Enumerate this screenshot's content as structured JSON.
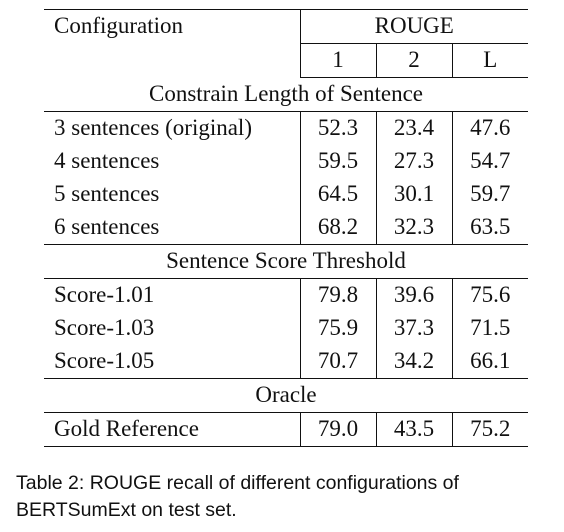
{
  "table": {
    "header": {
      "config_label": "Configuration",
      "group_label": "ROUGE",
      "sub_columns": [
        "1",
        "2",
        "L"
      ]
    },
    "sections": [
      {
        "title": "Constrain Length of Sentence",
        "rows": [
          {
            "label": "3 sentences (original)",
            "values": [
              "52.3",
              "23.4",
              "47.6"
            ]
          },
          {
            "label": "4 sentences",
            "values": [
              "59.5",
              "27.3",
              "54.7"
            ]
          },
          {
            "label": "5 sentences",
            "values": [
              "64.5",
              "30.1",
              "59.7"
            ]
          },
          {
            "label": "6 sentences",
            "values": [
              "68.2",
              "32.3",
              "63.5"
            ]
          }
        ]
      },
      {
        "title": "Sentence Score Threshold",
        "rows": [
          {
            "label": "Score-1.01",
            "values": [
              "79.8",
              "39.6",
              "75.6"
            ]
          },
          {
            "label": "Score-1.03",
            "values": [
              "75.9",
              "37.3",
              "71.5"
            ]
          },
          {
            "label": "Score-1.05",
            "values": [
              "70.7",
              "34.2",
              "66.1"
            ]
          }
        ]
      },
      {
        "title": "Oracle",
        "rows": [
          {
            "label": "Gold Reference",
            "values": [
              "79.0",
              "43.5",
              "75.2"
            ]
          }
        ]
      }
    ]
  },
  "caption": {
    "line1": "Table 2: ROUGE recall of different configurations of",
    "line2": "BERTSumExt on test set."
  }
}
